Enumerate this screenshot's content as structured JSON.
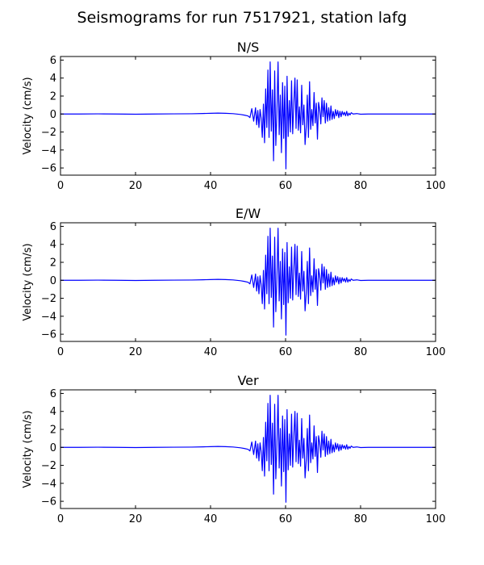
{
  "figure": {
    "title": "Seismograms for run 7517921, station lafg"
  },
  "style": {
    "line_color": "#0000ff"
  },
  "chart_data": [
    {
      "type": "line",
      "title": "N/S",
      "xlabel": "",
      "ylabel": "Velocity (cm/s)",
      "xlim": [
        0,
        100
      ],
      "ylim": [
        -6.8,
        6.4
      ],
      "xticks": [
        0,
        20,
        40,
        60,
        80,
        100
      ],
      "yticks": [
        -6,
        -4,
        -2,
        0,
        2,
        4,
        6
      ],
      "grid": false,
      "series": [
        {
          "x": [
            0,
            5,
            10,
            15,
            20,
            25,
            30,
            35,
            38,
            40,
            42,
            44,
            46,
            48,
            49,
            50,
            50.5,
            51,
            51.5,
            52,
            52.3,
            52.6,
            52.9,
            53.2,
            53.5,
            53.8,
            54.1,
            54.4,
            54.7,
            55,
            55.3,
            55.6,
            55.9,
            56.2,
            56.5,
            56.8,
            57.1,
            57.4,
            57.7,
            58,
            58.3,
            58.6,
            58.9,
            59.2,
            59.5,
            59.8,
            60.1,
            60.4,
            60.7,
            61,
            61.3,
            61.6,
            61.9,
            62.2,
            62.5,
            62.8,
            63.1,
            63.4,
            63.7,
            64,
            64.3,
            64.6,
            64.9,
            65.2,
            65.5,
            65.8,
            66.1,
            66.4,
            66.7,
            67,
            67.3,
            67.6,
            67.9,
            68.2,
            68.5,
            68.8,
            69.1,
            69.4,
            69.7,
            70,
            70.3,
            70.6,
            70.9,
            71.2,
            71.5,
            71.8,
            72.1,
            72.4,
            72.7,
            73,
            73.3,
            73.6,
            73.9,
            74.2,
            74.5,
            74.8,
            75.1,
            75.4,
            75.7,
            76,
            76.3,
            76.6,
            76.9,
            77.2,
            77.5,
            78,
            79,
            80,
            82,
            85,
            90,
            95,
            100
          ],
          "y": [
            0,
            0,
            0.02,
            0,
            -0.02,
            0,
            0.02,
            0.03,
            0.06,
            0.08,
            0.1,
            0.08,
            0.04,
            -0.05,
            -0.12,
            -0.22,
            -0.4,
            0.6,
            -0.8,
            0.7,
            -1.2,
            0.4,
            -1.5,
            0.5,
            -0.5,
            -2.6,
            1.1,
            -3.2,
            2.8,
            -1.5,
            4.9,
            -2.6,
            5.8,
            -1.9,
            2.7,
            -5.2,
            4.8,
            -3.5,
            0.3,
            5.8,
            -2.3,
            2.1,
            -4.3,
            3.5,
            -2.7,
            3.1,
            -6.1,
            4.2,
            -2.5,
            1.5,
            -2.0,
            3.7,
            -2.2,
            1.2,
            4.0,
            -1.6,
            3.8,
            -1.8,
            0.8,
            -2.1,
            3.2,
            -1.2,
            1.0,
            -3.4,
            -1.5,
            2.1,
            -2.6,
            3.6,
            -1.7,
            0.5,
            -1.3,
            2.4,
            -1.0,
            1.2,
            -2.8,
            1.3,
            0.5,
            -1.1,
            1.8,
            -0.3,
            1.5,
            -1.0,
            1.2,
            -0.8,
            0.7,
            -0.7,
            0.9,
            -0.6,
            0.3,
            -0.5,
            0.5,
            -0.2,
            0.4,
            -0.4,
            0.3,
            -0.3,
            0.3,
            -0.1,
            0.2,
            -0.2,
            0.3,
            -0.2,
            0.1,
            -0.1,
            0.15,
            0,
            0.05,
            -0.02,
            0,
            0,
            0,
            0,
            0
          ]
        }
      ]
    },
    {
      "type": "line",
      "title": "E/W",
      "xlabel": "",
      "ylabel": "Velocity (cm/s)",
      "xlim": [
        0,
        100
      ],
      "ylim": [
        -6.8,
        6.4
      ],
      "xticks": [
        0,
        20,
        40,
        60,
        80,
        100
      ],
      "yticks": [
        -6,
        -4,
        -2,
        0,
        2,
        4,
        6
      ],
      "grid": false,
      "series": [
        {
          "x": [
            0,
            5,
            10,
            15,
            20,
            25,
            30,
            35,
            38,
            40,
            42,
            44,
            46,
            48,
            49,
            50,
            50.5,
            51,
            51.5,
            52,
            52.3,
            52.6,
            52.9,
            53.2,
            53.5,
            53.8,
            54.1,
            54.4,
            54.7,
            55,
            55.3,
            55.6,
            55.9,
            56.2,
            56.5,
            56.8,
            57.1,
            57.4,
            57.7,
            58,
            58.3,
            58.6,
            58.9,
            59.2,
            59.5,
            59.8,
            60.1,
            60.4,
            60.7,
            61,
            61.3,
            61.6,
            61.9,
            62.2,
            62.5,
            62.8,
            63.1,
            63.4,
            63.7,
            64,
            64.3,
            64.6,
            64.9,
            65.2,
            65.5,
            65.8,
            66.1,
            66.4,
            66.7,
            67,
            67.3,
            67.6,
            67.9,
            68.2,
            68.5,
            68.8,
            69.1,
            69.4,
            69.7,
            70,
            70.3,
            70.6,
            70.9,
            71.2,
            71.5,
            71.8,
            72.1,
            72.4,
            72.7,
            73,
            73.3,
            73.6,
            73.9,
            74.2,
            74.5,
            74.8,
            75.1,
            75.4,
            75.7,
            76,
            76.3,
            76.6,
            76.9,
            77.2,
            77.5,
            78,
            79,
            80,
            82,
            85,
            90,
            95,
            100
          ],
          "y": [
            0,
            0,
            0.02,
            0,
            -0.02,
            0,
            0.02,
            0.03,
            0.06,
            0.08,
            0.1,
            0.08,
            0.04,
            -0.05,
            -0.12,
            -0.22,
            -0.4,
            0.6,
            -0.8,
            0.7,
            -1.2,
            0.4,
            -1.5,
            0.5,
            -0.5,
            -2.6,
            1.1,
            -3.2,
            2.8,
            -1.5,
            4.9,
            -2.6,
            5.8,
            -1.9,
            2.7,
            -5.2,
            4.8,
            -3.5,
            0.3,
            5.8,
            -2.3,
            2.1,
            -4.3,
            3.5,
            -2.7,
            3.1,
            -6.1,
            4.2,
            -2.5,
            1.5,
            -2.0,
            3.7,
            -2.2,
            1.2,
            4.0,
            -1.6,
            3.8,
            -1.8,
            0.8,
            -2.1,
            3.2,
            -1.2,
            1.0,
            -3.4,
            -1.5,
            2.1,
            -2.6,
            3.6,
            -1.7,
            0.5,
            -1.3,
            2.4,
            -1.0,
            1.2,
            -2.8,
            1.3,
            0.5,
            -1.1,
            1.8,
            -0.3,
            1.5,
            -1.0,
            1.2,
            -0.8,
            0.7,
            -0.7,
            0.9,
            -0.6,
            0.3,
            -0.5,
            0.5,
            -0.2,
            0.4,
            -0.4,
            0.3,
            -0.3,
            0.3,
            -0.1,
            0.2,
            -0.2,
            0.3,
            -0.2,
            0.1,
            -0.1,
            0.15,
            0,
            0.05,
            -0.02,
            0,
            0,
            0,
            0,
            0
          ]
        }
      ]
    },
    {
      "type": "line",
      "title": "Ver",
      "xlabel": "",
      "ylabel": "Velocity (cm/s)",
      "xlim": [
        0,
        100
      ],
      "ylim": [
        -6.8,
        6.4
      ],
      "xticks": [
        0,
        20,
        40,
        60,
        80,
        100
      ],
      "yticks": [
        -6,
        -4,
        -2,
        0,
        2,
        4,
        6
      ],
      "grid": false,
      "series": [
        {
          "x": [
            0,
            5,
            10,
            15,
            20,
            25,
            30,
            35,
            38,
            40,
            42,
            44,
            46,
            48,
            49,
            50,
            50.5,
            51,
            51.5,
            52,
            52.3,
            52.6,
            52.9,
            53.2,
            53.5,
            53.8,
            54.1,
            54.4,
            54.7,
            55,
            55.3,
            55.6,
            55.9,
            56.2,
            56.5,
            56.8,
            57.1,
            57.4,
            57.7,
            58,
            58.3,
            58.6,
            58.9,
            59.2,
            59.5,
            59.8,
            60.1,
            60.4,
            60.7,
            61,
            61.3,
            61.6,
            61.9,
            62.2,
            62.5,
            62.8,
            63.1,
            63.4,
            63.7,
            64,
            64.3,
            64.6,
            64.9,
            65.2,
            65.5,
            65.8,
            66.1,
            66.4,
            66.7,
            67,
            67.3,
            67.6,
            67.9,
            68.2,
            68.5,
            68.8,
            69.1,
            69.4,
            69.7,
            70,
            70.3,
            70.6,
            70.9,
            71.2,
            71.5,
            71.8,
            72.1,
            72.4,
            72.7,
            73,
            73.3,
            73.6,
            73.9,
            74.2,
            74.5,
            74.8,
            75.1,
            75.4,
            75.7,
            76,
            76.3,
            76.6,
            76.9,
            77.2,
            77.5,
            78,
            79,
            80,
            82,
            85,
            90,
            95,
            100
          ],
          "y": [
            0,
            0,
            0.02,
            0,
            -0.02,
            0,
            0.02,
            0.03,
            0.06,
            0.08,
            0.1,
            0.08,
            0.04,
            -0.05,
            -0.12,
            -0.22,
            -0.4,
            0.6,
            -0.8,
            0.7,
            -1.2,
            0.4,
            -1.5,
            0.5,
            -0.5,
            -2.6,
            1.1,
            -3.2,
            2.8,
            -1.5,
            4.9,
            -2.6,
            5.8,
            -1.9,
            2.7,
            -5.2,
            4.8,
            -3.5,
            0.3,
            5.8,
            -2.3,
            2.1,
            -4.3,
            3.5,
            -2.7,
            3.1,
            -6.1,
            4.2,
            -2.5,
            1.5,
            -2.0,
            3.7,
            -2.2,
            1.2,
            4.0,
            -1.6,
            3.8,
            -1.8,
            0.8,
            -2.1,
            3.2,
            -1.2,
            1.0,
            -3.4,
            -1.5,
            2.1,
            -2.6,
            3.6,
            -1.7,
            0.5,
            -1.3,
            2.4,
            -1.0,
            1.2,
            -2.8,
            1.3,
            0.5,
            -1.1,
            1.8,
            -0.3,
            1.5,
            -1.0,
            1.2,
            -0.8,
            0.7,
            -0.7,
            0.9,
            -0.6,
            0.3,
            -0.5,
            0.5,
            -0.2,
            0.4,
            -0.4,
            0.3,
            -0.3,
            0.3,
            -0.1,
            0.2,
            -0.2,
            0.3,
            -0.2,
            0.1,
            -0.1,
            0.15,
            0,
            0.05,
            -0.02,
            0,
            0,
            0,
            0,
            0
          ]
        }
      ]
    }
  ]
}
